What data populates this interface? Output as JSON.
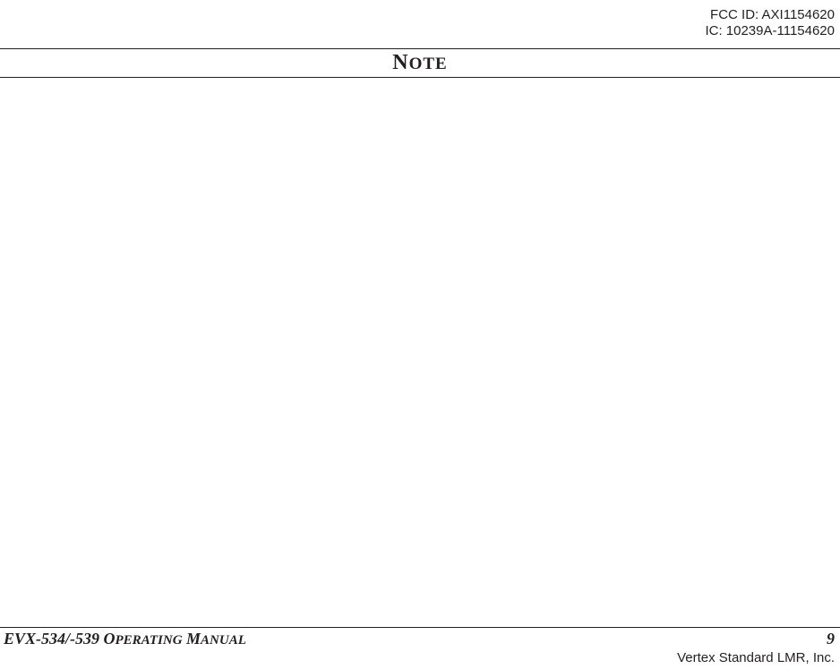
{
  "header": {
    "fcc_id": "FCC ID: AXI1154620",
    "ic_id": "IC: 10239A-11154620"
  },
  "title": {
    "prefix": "N",
    "rest": "OTE"
  },
  "footer": {
    "manual_prefix": "EVX-534/-539 O",
    "manual_mid": "PERATING",
    "manual_space": " M",
    "manual_end": "ANUAL",
    "page_number": "9",
    "company": "Vertex Standard LMR, Inc."
  },
  "colors": {
    "text": "#231f20",
    "background": "#ffffff",
    "rule": "#231f20"
  }
}
